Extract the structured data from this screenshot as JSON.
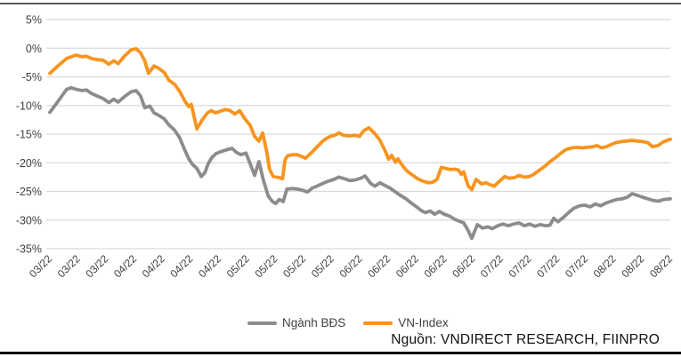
{
  "chart_data": {
    "type": "line",
    "title": "",
    "xlabel": "",
    "ylabel": "",
    "y_axis": {
      "min": -35,
      "max": 5,
      "step": 5,
      "unit": "%"
    },
    "y_tick_labels": [
      "5%",
      "0%",
      "-5%",
      "-10%",
      "-15%",
      "-20%",
      "-25%",
      "-30%",
      "-35%"
    ],
    "x_tick_labels": [
      "03/22",
      "03/22",
      "03/22",
      "04/22",
      "04/22",
      "04/22",
      "04/22",
      "05/22",
      "05/22",
      "05/22",
      "05/22",
      "06/22",
      "06/22",
      "06/22",
      "06/22",
      "06/22",
      "07/22",
      "07/22",
      "07/22",
      "07/22",
      "08/22",
      "08/22",
      "08/22"
    ],
    "grid": "horizontal",
    "legend_position": "bottom",
    "x_unit": "position per-mille across time axis (Mar 2022 - Aug 2022)",
    "series": [
      {
        "name": "Ngành BĐS",
        "color": "#8a8c8e",
        "points": [
          [
            0,
            -11.2
          ],
          [
            13,
            -9.3
          ],
          [
            27,
            -7.2
          ],
          [
            34,
            -6.9
          ],
          [
            43,
            -7.2
          ],
          [
            52,
            -7.4
          ],
          [
            59,
            -7.3
          ],
          [
            67,
            -7.9
          ],
          [
            77,
            -8.4
          ],
          [
            86,
            -8.8
          ],
          [
            95,
            -9.5
          ],
          [
            103,
            -8.9
          ],
          [
            110,
            -9.4
          ],
          [
            121,
            -8.4
          ],
          [
            131,
            -7.6
          ],
          [
            139,
            -7.4
          ],
          [
            146,
            -8.3
          ],
          [
            153,
            -10.4
          ],
          [
            161,
            -10.1
          ],
          [
            168,
            -11.3
          ],
          [
            175,
            -11.7
          ],
          [
            184,
            -12.3
          ],
          [
            192,
            -13.4
          ],
          [
            201,
            -14.3
          ],
          [
            209,
            -15.6
          ],
          [
            218,
            -17.9
          ],
          [
            224,
            -19.3
          ],
          [
            230,
            -20.3
          ],
          [
            237,
            -21.0
          ],
          [
            244,
            -22.4
          ],
          [
            250,
            -21.7
          ],
          [
            255,
            -20.2
          ],
          [
            261,
            -19.1
          ],
          [
            268,
            -18.4
          ],
          [
            277,
            -18.0
          ],
          [
            286,
            -17.7
          ],
          [
            294,
            -17.5
          ],
          [
            301,
            -18.2
          ],
          [
            308,
            -18.6
          ],
          [
            316,
            -18.3
          ],
          [
            323,
            -20.2
          ],
          [
            330,
            -22.2
          ],
          [
            337,
            -19.8
          ],
          [
            344,
            -23.0
          ],
          [
            352,
            -25.8
          ],
          [
            359,
            -26.8
          ],
          [
            364,
            -27.1
          ],
          [
            370,
            -26.4
          ],
          [
            376,
            -26.8
          ],
          [
            382,
            -24.6
          ],
          [
            391,
            -24.5
          ],
          [
            399,
            -24.6
          ],
          [
            407,
            -24.8
          ],
          [
            415,
            -25.1
          ],
          [
            423,
            -24.4
          ],
          [
            432,
            -24.0
          ],
          [
            440,
            -23.6
          ],
          [
            449,
            -23.2
          ],
          [
            458,
            -22.9
          ],
          [
            466,
            -22.5
          ],
          [
            475,
            -22.8
          ],
          [
            483,
            -23.1
          ],
          [
            492,
            -23.0
          ],
          [
            501,
            -22.7
          ],
          [
            508,
            -22.3
          ],
          [
            517,
            -23.6
          ],
          [
            524,
            -24.1
          ],
          [
            532,
            -23.5
          ],
          [
            539,
            -23.9
          ],
          [
            548,
            -24.4
          ],
          [
            557,
            -25.1
          ],
          [
            565,
            -25.7
          ],
          [
            574,
            -26.3
          ],
          [
            582,
            -27.0
          ],
          [
            591,
            -27.7
          ],
          [
            598,
            -28.3
          ],
          [
            605,
            -28.7
          ],
          [
            613,
            -28.4
          ],
          [
            620,
            -29.0
          ],
          [
            628,
            -28.5
          ],
          [
            636,
            -29.0
          ],
          [
            644,
            -29.3
          ],
          [
            653,
            -29.9
          ],
          [
            660,
            -30.2
          ],
          [
            667,
            -30.5
          ],
          [
            674,
            -31.8
          ],
          [
            680,
            -33.2
          ],
          [
            689,
            -30.8
          ],
          [
            697,
            -31.4
          ],
          [
            706,
            -31.2
          ],
          [
            713,
            -31.5
          ],
          [
            722,
            -31.0
          ],
          [
            730,
            -30.7
          ],
          [
            739,
            -31.0
          ],
          [
            747,
            -30.7
          ],
          [
            756,
            -30.5
          ],
          [
            765,
            -31.0
          ],
          [
            773,
            -30.7
          ],
          [
            782,
            -31.1
          ],
          [
            790,
            -30.8
          ],
          [
            799,
            -31.0
          ],
          [
            806,
            -30.9
          ],
          [
            812,
            -29.7
          ],
          [
            819,
            -30.3
          ],
          [
            828,
            -29.5
          ],
          [
            836,
            -28.7
          ],
          [
            845,
            -27.9
          ],
          [
            854,
            -27.5
          ],
          [
            862,
            -27.4
          ],
          [
            871,
            -27.7
          ],
          [
            879,
            -27.2
          ],
          [
            888,
            -27.5
          ],
          [
            897,
            -27.0
          ],
          [
            905,
            -26.7
          ],
          [
            914,
            -26.4
          ],
          [
            922,
            -26.3
          ],
          [
            931,
            -26.0
          ],
          [
            938,
            -25.4
          ],
          [
            947,
            -25.7
          ],
          [
            955,
            -26.0
          ],
          [
            964,
            -26.3
          ],
          [
            973,
            -26.6
          ],
          [
            981,
            -26.7
          ],
          [
            990,
            -26.4
          ],
          [
            1000,
            -26.3
          ]
        ]
      },
      {
        "name": "VN-Index",
        "color": "#f7941e",
        "points": [
          [
            0,
            -4.4
          ],
          [
            13,
            -3.1
          ],
          [
            27,
            -1.8
          ],
          [
            42,
            -1.2
          ],
          [
            52,
            -1.5
          ],
          [
            59,
            -1.4
          ],
          [
            67,
            -1.8
          ],
          [
            77,
            -2.0
          ],
          [
            86,
            -2.1
          ],
          [
            95,
            -2.8
          ],
          [
            103,
            -2.2
          ],
          [
            110,
            -2.7
          ],
          [
            121,
            -1.3
          ],
          [
            131,
            -0.3
          ],
          [
            139,
            -0.1
          ],
          [
            146,
            -0.8
          ],
          [
            153,
            -2.2
          ],
          [
            159,
            -4.4
          ],
          [
            168,
            -3.1
          ],
          [
            175,
            -3.5
          ],
          [
            184,
            -4.2
          ],
          [
            192,
            -5.6
          ],
          [
            201,
            -6.3
          ],
          [
            209,
            -7.5
          ],
          [
            218,
            -9.3
          ],
          [
            224,
            -10.2
          ],
          [
            228,
            -9.8
          ],
          [
            237,
            -14.1
          ],
          [
            245,
            -12.6
          ],
          [
            254,
            -11.3
          ],
          [
            260,
            -10.9
          ],
          [
            267,
            -11.3
          ],
          [
            275,
            -11.0
          ],
          [
            283,
            -10.7
          ],
          [
            291,
            -10.9
          ],
          [
            298,
            -11.5
          ],
          [
            306,
            -10.9
          ],
          [
            314,
            -12.3
          ],
          [
            323,
            -13.5
          ],
          [
            330,
            -15.4
          ],
          [
            337,
            -16.2
          ],
          [
            343,
            -14.8
          ],
          [
            350,
            -18.3
          ],
          [
            354,
            -21.1
          ],
          [
            360,
            -22.4
          ],
          [
            370,
            -22.6
          ],
          [
            375,
            -22.8
          ],
          [
            379,
            -19.5
          ],
          [
            383,
            -18.8
          ],
          [
            391,
            -18.6
          ],
          [
            399,
            -18.6
          ],
          [
            406,
            -18.9
          ],
          [
            412,
            -19.2
          ],
          [
            422,
            -18.2
          ],
          [
            432,
            -17.1
          ],
          [
            439,
            -16.3
          ],
          [
            445,
            -15.8
          ],
          [
            452,
            -15.4
          ],
          [
            459,
            -15.2
          ],
          [
            466,
            -14.8
          ],
          [
            473,
            -15.2
          ],
          [
            483,
            -15.3
          ],
          [
            492,
            -15.2
          ],
          [
            499,
            -15.4
          ],
          [
            506,
            -14.4
          ],
          [
            514,
            -13.9
          ],
          [
            522,
            -14.7
          ],
          [
            531,
            -15.9
          ],
          [
            539,
            -17.6
          ],
          [
            546,
            -19.4
          ],
          [
            551,
            -18.7
          ],
          [
            557,
            -19.9
          ],
          [
            561,
            -19.3
          ],
          [
            567,
            -20.3
          ],
          [
            575,
            -21.4
          ],
          [
            584,
            -22.1
          ],
          [
            593,
            -22.8
          ],
          [
            601,
            -23.2
          ],
          [
            610,
            -23.5
          ],
          [
            617,
            -23.4
          ],
          [
            624,
            -22.9
          ],
          [
            631,
            -20.8
          ],
          [
            638,
            -21.0
          ],
          [
            646,
            -21.2
          ],
          [
            653,
            -21.1
          ],
          [
            659,
            -21.3
          ],
          [
            663,
            -22.0
          ],
          [
            667,
            -21.6
          ],
          [
            674,
            -24.0
          ],
          [
            680,
            -24.7
          ],
          [
            687,
            -22.9
          ],
          [
            696,
            -23.7
          ],
          [
            703,
            -23.5
          ],
          [
            709,
            -23.8
          ],
          [
            716,
            -24.1
          ],
          [
            725,
            -23.2
          ],
          [
            733,
            -22.4
          ],
          [
            740,
            -22.7
          ],
          [
            749,
            -22.6
          ],
          [
            756,
            -22.2
          ],
          [
            765,
            -22.5
          ],
          [
            773,
            -22.4
          ],
          [
            780,
            -22.0
          ],
          [
            789,
            -21.3
          ],
          [
            798,
            -20.6
          ],
          [
            806,
            -19.8
          ],
          [
            815,
            -19.1
          ],
          [
            824,
            -18.3
          ],
          [
            832,
            -17.7
          ],
          [
            841,
            -17.4
          ],
          [
            849,
            -17.3
          ],
          [
            858,
            -17.4
          ],
          [
            866,
            -17.3
          ],
          [
            875,
            -17.2
          ],
          [
            882,
            -17.0
          ],
          [
            889,
            -17.4
          ],
          [
            897,
            -17.2
          ],
          [
            905,
            -16.8
          ],
          [
            912,
            -16.5
          ],
          [
            921,
            -16.3
          ],
          [
            930,
            -16.2
          ],
          [
            938,
            -16.1
          ],
          [
            947,
            -16.2
          ],
          [
            955,
            -16.3
          ],
          [
            964,
            -16.5
          ],
          [
            971,
            -17.2
          ],
          [
            980,
            -17.0
          ],
          [
            988,
            -16.4
          ],
          [
            1000,
            -15.9
          ]
        ]
      }
    ]
  },
  "legend": {
    "items": [
      {
        "label": "Ngành BĐS",
        "color": "#8a8c8e"
      },
      {
        "label": "VN-Index",
        "color": "#f7941e"
      }
    ]
  },
  "footer": {
    "source_note": "Nguồn: VNDIRECT RESEARCH, FIINPRO"
  },
  "colors": {
    "gridline": "#d9d9d9",
    "axis_text": "#3f3f3f",
    "top_rule": "#58595b",
    "bottom_rule": "#0a0a0a",
    "background": "#ffffff"
  }
}
